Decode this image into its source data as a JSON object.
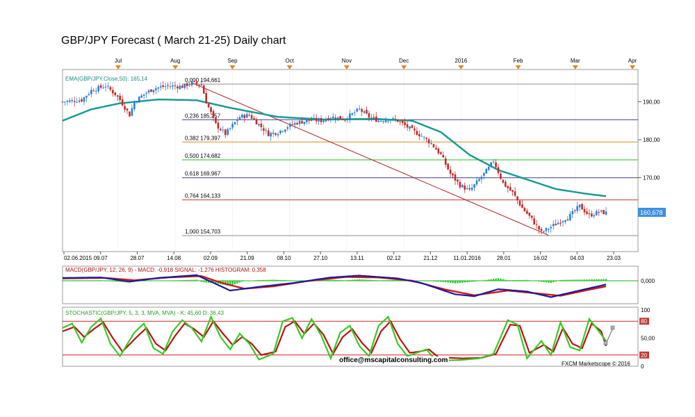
{
  "title": "GBP/JPY Forecast ( March 21-25) Daily chart",
  "email": "office@mscapitalconsulting.com",
  "credit": "FXCM Marketscope © 2016",
  "chart_data": [
    {
      "type": "candlestick",
      "indicator_label": "EMA(GBP/JPY.Close,50): 165,14",
      "month_labels": [
        "Jul",
        "Aug",
        "Sep",
        "Oct",
        "Nov",
        "Dec",
        "2016",
        "Feb",
        "Mar",
        "Apr"
      ],
      "date_labels": [
        "02.06.2015",
        "09.07",
        "28.07",
        "14.08",
        "02.09",
        "21.09",
        "08.10",
        "27.10",
        "13.11",
        "02.12",
        "21.12",
        "11.01.2016",
        "28.01",
        "16.02",
        "04.03",
        "23.03"
      ],
      "y_ticks": [
        "190,00",
        "180,00",
        "170,00"
      ],
      "ylim": [
        150.5,
        198.5
      ],
      "current_price": "160,678",
      "fib_levels": [
        {
          "label": "0,000 194,661",
          "value": 194.661,
          "color": "#8c8c8c"
        },
        {
          "label": "0,236 185,257",
          "value": 185.257,
          "color": "#3b3b8f"
        },
        {
          "label": "0,382 179,397",
          "value": 179.397,
          "color": "#d98a1a"
        },
        {
          "label": "0,500 174,682",
          "value": 174.682,
          "color": "#22bb22"
        },
        {
          "label": "0,618 169,967",
          "value": 169.967,
          "color": "#3b3b8f"
        },
        {
          "label": "0,764 164,133",
          "value": 164.133,
          "color": "#cc3333"
        },
        {
          "label": "1,000 154,703",
          "value": 154.703,
          "color": "#8c8c8c"
        }
      ],
      "close_path": [
        [
          0,
          190.0
        ],
        [
          8,
          190.5
        ],
        [
          12,
          193.0
        ],
        [
          18,
          194.2
        ],
        [
          22,
          192.0
        ],
        [
          24,
          190.5
        ],
        [
          28,
          186.5
        ],
        [
          30,
          190.0
        ],
        [
          34,
          192.0
        ],
        [
          38,
          193.5
        ],
        [
          44,
          194.2
        ],
        [
          50,
          194.0
        ],
        [
          54,
          195.0
        ],
        [
          58,
          194.5
        ],
        [
          60,
          190.0
        ],
        [
          64,
          184.0
        ],
        [
          68,
          181.5
        ],
        [
          70,
          183.0
        ],
        [
          74,
          186.0
        ],
        [
          78,
          186.5
        ],
        [
          82,
          184.0
        ],
        [
          86,
          181.5
        ],
        [
          90,
          182.0
        ],
        [
          94,
          183.5
        ],
        [
          98,
          184.5
        ],
        [
          104,
          185.2
        ],
        [
          108,
          185.0
        ],
        [
          112,
          186.0
        ],
        [
          118,
          185.5
        ],
        [
          124,
          188.0
        ],
        [
          128,
          186.0
        ],
        [
          132,
          185.0
        ],
        [
          136,
          185.5
        ],
        [
          140,
          185.0
        ],
        [
          146,
          182.5
        ],
        [
          150,
          181.0
        ],
        [
          154,
          179.0
        ],
        [
          158,
          176.0
        ],
        [
          162,
          171.0
        ],
        [
          166,
          168.0
        ],
        [
          170,
          166.5
        ],
        [
          174,
          169.5
        ],
        [
          178,
          172.5
        ],
        [
          180,
          174.5
        ],
        [
          184,
          168.5
        ],
        [
          188,
          166.0
        ],
        [
          192,
          162.0
        ],
        [
          196,
          159.0
        ],
        [
          200,
          155.5
        ],
        [
          204,
          157.0
        ],
        [
          208,
          158.5
        ],
        [
          212,
          160.0
        ],
        [
          216,
          162.5
        ],
        [
          220,
          160.0
        ],
        [
          224,
          161.0
        ],
        [
          227,
          160.7
        ]
      ],
      "ema_path": [
        [
          0,
          185.0
        ],
        [
          12,
          188.0
        ],
        [
          24,
          189.6
        ],
        [
          40,
          190.6
        ],
        [
          56,
          190.4
        ],
        [
          70,
          188.4
        ],
        [
          90,
          186.0
        ],
        [
          110,
          185.3
        ],
        [
          130,
          185.5
        ],
        [
          146,
          185.0
        ],
        [
          158,
          182.0
        ],
        [
          170,
          176.0
        ],
        [
          182,
          172.0
        ],
        [
          194,
          169.5
        ],
        [
          206,
          167.0
        ],
        [
          218,
          165.8
        ],
        [
          227,
          165.1
        ]
      ],
      "trendline": [
        [
          54,
          195.0
        ],
        [
          203,
          154.8
        ]
      ],
      "x_span": 227
    },
    {
      "type": "macd",
      "label": "MACD(GBP/JPY, 12, 26, 9) - MACD: -0,918  SIGNAL: -1,276  HISTOGRAM: 0,358",
      "y_ticks": [
        "0,000"
      ],
      "ylim": [
        -5.0,
        3.0
      ],
      "macd": [
        [
          0,
          0.5
        ],
        [
          16,
          0.6
        ],
        [
          28,
          -0.3
        ],
        [
          40,
          0.5
        ],
        [
          56,
          1.1
        ],
        [
          62,
          -0.3
        ],
        [
          70,
          -2.2
        ],
        [
          82,
          -1.4
        ],
        [
          96,
          -0.6
        ],
        [
          112,
          0.6
        ],
        [
          124,
          1.0
        ],
        [
          140,
          0.4
        ],
        [
          150,
          -0.6
        ],
        [
          164,
          -3.0
        ],
        [
          172,
          -3.4
        ],
        [
          182,
          -1.9
        ],
        [
          194,
          -2.4
        ],
        [
          204,
          -3.6
        ],
        [
          214,
          -2.4
        ],
        [
          227,
          -0.9
        ]
      ],
      "signal": [
        [
          0,
          0.4
        ],
        [
          18,
          0.5
        ],
        [
          30,
          0.0
        ],
        [
          44,
          0.6
        ],
        [
          58,
          0.9
        ],
        [
          66,
          -0.5
        ],
        [
          76,
          -1.8
        ],
        [
          88,
          -1.3
        ],
        [
          102,
          -0.2
        ],
        [
          118,
          0.7
        ],
        [
          132,
          0.6
        ],
        [
          146,
          -0.1
        ],
        [
          160,
          -2.0
        ],
        [
          172,
          -3.2
        ],
        [
          186,
          -2.2
        ],
        [
          198,
          -2.8
        ],
        [
          208,
          -3.3
        ],
        [
          220,
          -2.0
        ],
        [
          227,
          -1.3
        ]
      ]
    },
    {
      "type": "stochastic",
      "label": "STOCHASTIC(GBP/JPY, 5, 3, 3, MVA, MVA) - K: 45,60  D: 36,43",
      "y_ticks": [
        "100",
        "80",
        "50,00",
        "20",
        "0"
      ],
      "ylim": [
        0,
        100
      ],
      "levels": [
        80,
        20
      ],
      "k": [
        [
          0,
          68
        ],
        [
          4,
          76
        ],
        [
          8,
          42
        ],
        [
          12,
          70
        ],
        [
          16,
          85
        ],
        [
          20,
          40
        ],
        [
          24,
          18
        ],
        [
          30,
          60
        ],
        [
          34,
          76
        ],
        [
          38,
          32
        ],
        [
          42,
          22
        ],
        [
          46,
          62
        ],
        [
          50,
          82
        ],
        [
          54,
          68
        ],
        [
          58,
          44
        ],
        [
          62,
          88
        ],
        [
          66,
          52
        ],
        [
          70,
          30
        ],
        [
          74,
          58
        ],
        [
          78,
          40
        ],
        [
          82,
          12
        ],
        [
          88,
          22
        ],
        [
          92,
          80
        ],
        [
          96,
          86
        ],
        [
          100,
          50
        ],
        [
          104,
          84
        ],
        [
          108,
          55
        ],
        [
          112,
          14
        ],
        [
          116,
          60
        ],
        [
          120,
          72
        ],
        [
          124,
          36
        ],
        [
          128,
          18
        ],
        [
          132,
          72
        ],
        [
          136,
          88
        ],
        [
          140,
          40
        ],
        [
          144,
          18
        ],
        [
          148,
          24
        ],
        [
          152,
          30
        ],
        [
          156,
          10
        ],
        [
          166,
          11
        ],
        [
          174,
          14
        ],
        [
          180,
          22
        ],
        [
          186,
          82
        ],
        [
          190,
          74
        ],
        [
          194,
          14
        ],
        [
          200,
          45
        ],
        [
          204,
          20
        ],
        [
          208,
          78
        ],
        [
          212,
          34
        ],
        [
          216,
          28
        ],
        [
          220,
          84
        ],
        [
          224,
          62
        ],
        [
          227,
          45
        ]
      ],
      "d": [
        [
          0,
          62
        ],
        [
          5,
          70
        ],
        [
          9,
          52
        ],
        [
          13,
          66
        ],
        [
          17,
          78
        ],
        [
          21,
          50
        ],
        [
          25,
          26
        ],
        [
          31,
          52
        ],
        [
          35,
          68
        ],
        [
          39,
          40
        ],
        [
          43,
          28
        ],
        [
          47,
          54
        ],
        [
          51,
          76
        ],
        [
          55,
          66
        ],
        [
          59,
          52
        ],
        [
          63,
          80
        ],
        [
          67,
          58
        ],
        [
          71,
          38
        ],
        [
          75,
          52
        ],
        [
          79,
          40
        ],
        [
          83,
          20
        ],
        [
          89,
          26
        ],
        [
          93,
          70
        ],
        [
          97,
          80
        ],
        [
          101,
          58
        ],
        [
          105,
          76
        ],
        [
          109,
          56
        ],
        [
          113,
          22
        ],
        [
          117,
          52
        ],
        [
          121,
          66
        ],
        [
          125,
          42
        ],
        [
          129,
          24
        ],
        [
          133,
          62
        ],
        [
          137,
          80
        ],
        [
          141,
          48
        ],
        [
          145,
          24
        ],
        [
          149,
          26
        ],
        [
          153,
          30
        ],
        [
          157,
          16
        ],
        [
          167,
          14
        ],
        [
          175,
          15
        ],
        [
          181,
          22
        ],
        [
          187,
          74
        ],
        [
          191,
          72
        ],
        [
          195,
          24
        ],
        [
          201,
          38
        ],
        [
          205,
          26
        ],
        [
          209,
          68
        ],
        [
          213,
          40
        ],
        [
          217,
          32
        ],
        [
          221,
          76
        ],
        [
          225,
          62
        ],
        [
          227,
          36
        ]
      ]
    }
  ]
}
